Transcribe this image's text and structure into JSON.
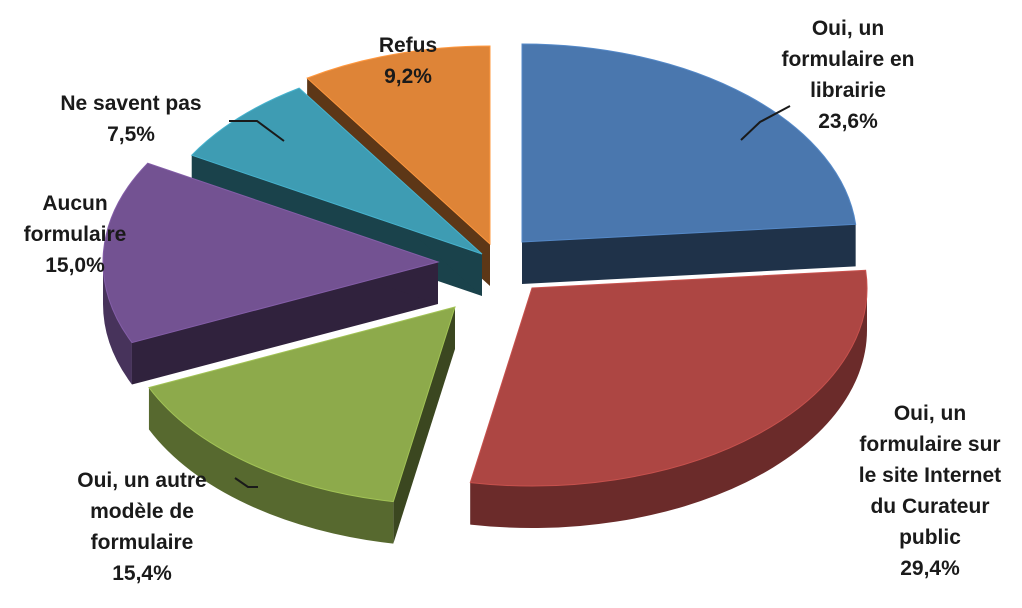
{
  "chart_data": {
    "type": "pie",
    "style": "3d-exploded",
    "title": "",
    "slices": [
      {
        "label_lines": [
          "Oui, un",
          "formulaire en",
          "librairie"
        ],
        "pct_text": "23,6%",
        "value": 23.6,
        "color": "#4A77AE"
      },
      {
        "label_lines": [
          "Oui, un",
          "formulaire sur",
          "le site Internet",
          "du Curateur",
          "public"
        ],
        "pct_text": "29,4%",
        "value": 29.4,
        "color": "#AD4643"
      },
      {
        "label_lines": [
          "Oui, un autre",
          "modèle de",
          "formulaire"
        ],
        "pct_text": "15,4%",
        "value": 15.4,
        "color": "#8DAA4B"
      },
      {
        "label_lines": [
          "Aucun",
          "formulaire"
        ],
        "pct_text": "15,0%",
        "value": 15.0,
        "color": "#735292"
      },
      {
        "label_lines": [
          "Ne savent pas"
        ],
        "pct_text": "7,5%",
        "value": 7.5,
        "color": "#3E9CB3"
      },
      {
        "label_lines": [
          "Refus"
        ],
        "pct_text": "9,2%",
        "value": 9.2,
        "color": "#DE8437"
      }
    ]
  }
}
